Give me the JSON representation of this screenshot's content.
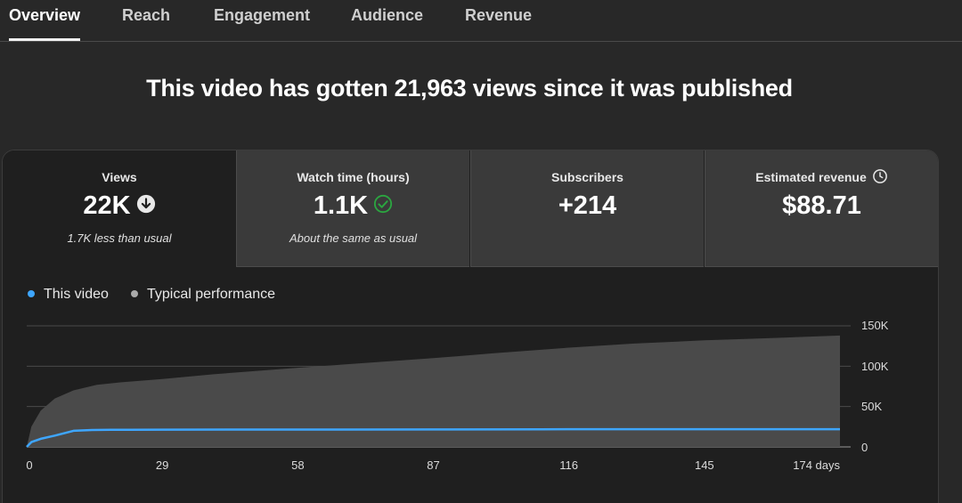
{
  "tabs": [
    {
      "label": "Overview",
      "active": true
    },
    {
      "label": "Reach",
      "active": false
    },
    {
      "label": "Engagement",
      "active": false
    },
    {
      "label": "Audience",
      "active": false
    },
    {
      "label": "Revenue",
      "active": false
    }
  ],
  "headline": "This video has gotten 21,963 views since it was published",
  "metrics": [
    {
      "label": "Views",
      "value": "22K",
      "note": "1.7K less than usual",
      "icon": "arrow-down-circle-icon",
      "selected": true
    },
    {
      "label": "Watch time (hours)",
      "value": "1.1K",
      "note": "About the same as usual",
      "icon": "check-circle-icon",
      "selected": false
    },
    {
      "label": "Subscribers",
      "value": "+214",
      "note": "",
      "icon": "",
      "selected": false
    },
    {
      "label": "Estimated revenue",
      "value": "$88.71",
      "note": "",
      "icon": "clock-icon",
      "selected": false
    }
  ],
  "legend": {
    "this_video": "This video",
    "typical": "Typical performance"
  },
  "colors": {
    "this_video": "#3ea6ff",
    "typical_dot": "#aaaaaa",
    "typical_area": "#4a4a4a",
    "check": "#2ba640"
  },
  "chart_data": {
    "type": "area",
    "x_ticks": [
      "0",
      "29",
      "58",
      "87",
      "116",
      "145",
      "174 days"
    ],
    "y_ticks": [
      "150K",
      "100K",
      "50K",
      "0"
    ],
    "xlim": [
      0,
      174
    ],
    "ylim": [
      0,
      150000
    ],
    "series": [
      {
        "name": "This video",
        "type": "line",
        "x": [
          0,
          1,
          3,
          6,
          10,
          14,
          18,
          22,
          29,
          58,
          87,
          110,
          116,
          145,
          174
        ],
        "y": [
          0,
          6000,
          10000,
          14000,
          20000,
          21000,
          21200,
          21300,
          21400,
          21500,
          21600,
          21700,
          21900,
          21950,
          21963
        ]
      },
      {
        "name": "Typical performance",
        "type": "area",
        "x": [
          0,
          1,
          3,
          6,
          10,
          15,
          20,
          29,
          40,
          58,
          75,
          87,
          100,
          116,
          130,
          145,
          160,
          174
        ],
        "y": [
          0,
          25000,
          45000,
          60000,
          70000,
          77000,
          80000,
          84000,
          90000,
          98000,
          105000,
          110000,
          116000,
          123000,
          128000,
          132000,
          135000,
          138000
        ]
      }
    ]
  }
}
